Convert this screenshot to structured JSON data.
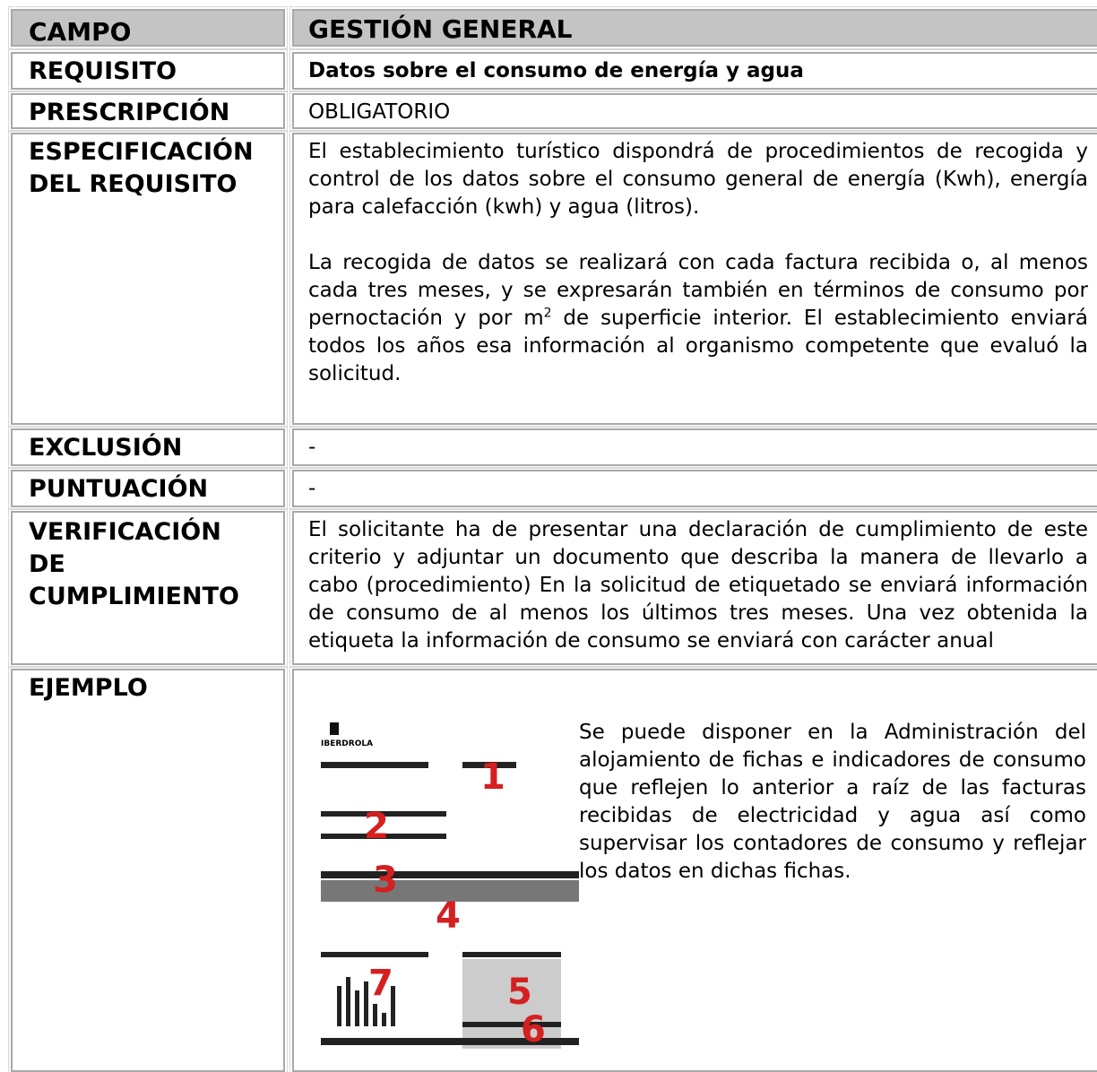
{
  "table": {
    "header": {
      "label": "CAMPO",
      "value": "GESTIÓN GENERAL"
    },
    "requisito": {
      "label": "REQUISITO",
      "value": "Datos sobre el consumo de energía y agua"
    },
    "prescripcion": {
      "label": "PRESCRIPCIÓN",
      "value": "OBLIGATORIO"
    },
    "especificacion": {
      "label": [
        "ESPECIFICACIÓN",
        "DEL REQUISITO"
      ],
      "paragraph1": "El establecimiento turístico dispondrá de procedimientos de recogida y control de los datos sobre el consumo general de energía (Kwh), energía para calefacción (kwh) y agua (litros).",
      "paragraph2": [
        "La recogida de datos se realizará con cada factura recibida o, al menos cada tres meses, y se expresarán también en términos de consumo por pernoctación y por m",
        "2",
        " de superficie interior. El establecimiento enviará todos los años esa información al organismo competente que evaluó la solicitud."
      ]
    },
    "exclusion": {
      "label": "EXCLUSIÓN",
      "value": "-"
    },
    "puntuacion": {
      "label": "PUNTUACIÓN",
      "value": "-"
    },
    "verificacion": {
      "label": [
        "VERIFICACIÓN",
        "DE",
        "CUMPLIMIENTO"
      ],
      "value": "El solicitante ha de presentar una declaración de cumplimiento de este criterio y adjuntar un documento que describa la manera de llevarlo a cabo (procedimiento) En la solicitud de etiquetado se enviará información de consumo de al menos los últimos tres meses. Una vez obtenida la etiqueta la información de consumo se enviará con carácter anual"
    },
    "ejemplo": {
      "label": "EJEMPLO",
      "image_brand": "IBERDROLA",
      "image_markers": [
        "1",
        "2",
        "3",
        "4",
        "5",
        "6",
        "7"
      ],
      "value": "Se puede disponer en la Administración del alojamiento de fichas e indicadores de consumo que reflejen lo anterior a raíz de las facturas recibidas de electricidad y agua así como supervisar los contadores de consumo y reflejar los datos en dichas fichas."
    }
  }
}
